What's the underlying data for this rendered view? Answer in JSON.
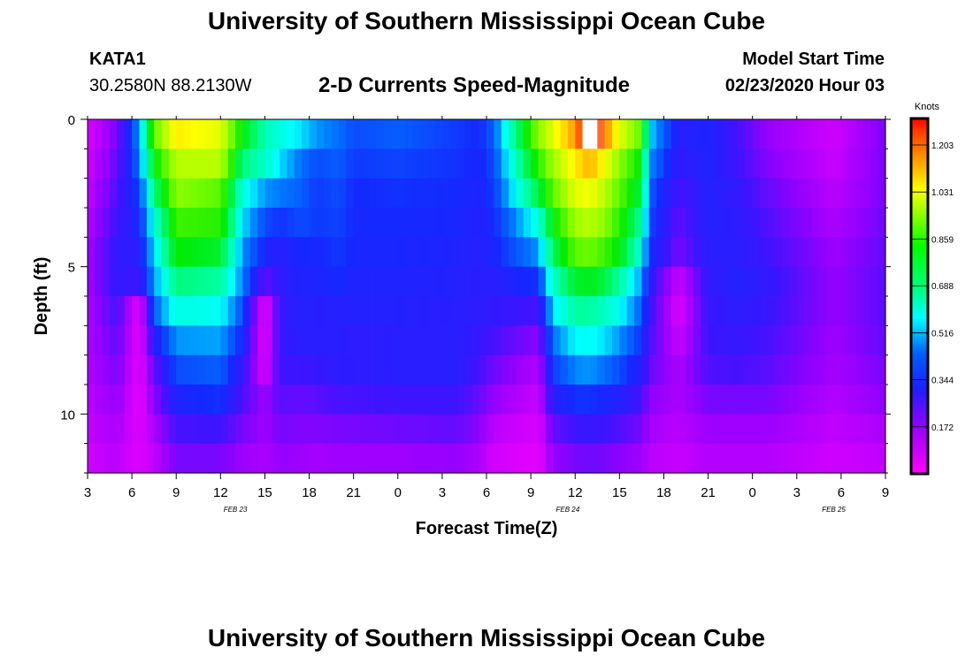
{
  "header": {
    "title": "University of Southern Mississippi Ocean Cube",
    "footer_title": "University of Southern Mississippi Ocean Cube",
    "station": "KATA1",
    "coords": "30.2580N 88.2130W",
    "chart_title": "2-D Currents Speed-Magnitude",
    "model_label": "Model Start Time",
    "model_time": "02/23/2020 Hour 03"
  },
  "chart_data": {
    "type": "heatmap",
    "title": "2-D Currents Speed-Magnitude",
    "xlabel": "Forecast Time(Z)",
    "ylabel": "Depth (ft)",
    "x_tick_labels": [
      "3",
      "6",
      "9",
      "12",
      "15",
      "18",
      "21",
      "0",
      "3",
      "6",
      "9",
      "12",
      "15",
      "18",
      "21",
      "0",
      "3",
      "6",
      "9"
    ],
    "x_range_hours": [
      0,
      54
    ],
    "date_labels": [
      {
        "text": "FEB 23",
        "hour": 10
      },
      {
        "text": "FEB 24",
        "hour": 32.5
      },
      {
        "text": "FEB 25",
        "hour": 50.5
      }
    ],
    "y_ticks": [
      0,
      5,
      10
    ],
    "y_range_ft": [
      0,
      12
    ],
    "colorbar": {
      "label": "Knots",
      "ticks": [
        "1.203",
        "1.031",
        "0.859",
        "0.688",
        "0.516",
        "0.344",
        "0.172"
      ],
      "tick_values": [
        1.203,
        1.031,
        0.859,
        0.688,
        0.516,
        0.344,
        0.172
      ],
      "range": [
        0,
        1.3
      ]
    },
    "depths_ft": [
      0.5,
      1.5,
      2.5,
      3.5,
      4.5,
      5.5,
      6.5,
      7.5,
      8.5,
      9.5,
      10.5,
      11.5
    ],
    "hour_step": 0.5,
    "anchor_hours": [
      0,
      2,
      3.5,
      4.5,
      6,
      9,
      10.5,
      12,
      13,
      14.5,
      15.5,
      17,
      18,
      21,
      25,
      26.5,
      27.5,
      30.5,
      31.5,
      33,
      34,
      35,
      36,
      37.5,
      38,
      40,
      42,
      44,
      46,
      50.5,
      54
    ],
    "anchor_profiles": [
      [
        0.07,
        0.09,
        0.11,
        0.13,
        0.15,
        0.15,
        0.14,
        0.14,
        0.13,
        0.12,
        0.11,
        0.09
      ],
      [
        0.2,
        0.22,
        0.24,
        0.26,
        0.28,
        0.28,
        0.25,
        0.22,
        0.2,
        0.17,
        0.14,
        0.12
      ],
      [
        0.45,
        0.42,
        0.37,
        0.33,
        0.3,
        0.26,
        0.05,
        0.05,
        0.05,
        0.05,
        0.06,
        0.06
      ],
      [
        0.85,
        0.75,
        0.65,
        0.55,
        0.5,
        0.45,
        0.4,
        0.3,
        0.22,
        0.18,
        0.14,
        0.11
      ],
      [
        1.05,
        0.95,
        0.9,
        0.82,
        0.76,
        0.65,
        0.55,
        0.45,
        0.38,
        0.32,
        0.25,
        0.2
      ],
      [
        1.0,
        0.95,
        0.85,
        0.8,
        0.72,
        0.62,
        0.53,
        0.46,
        0.4,
        0.35,
        0.26,
        0.2
      ],
      [
        0.75,
        0.65,
        0.55,
        0.5,
        0.45,
        0.43,
        0.38,
        0.33,
        0.28,
        0.24,
        0.2,
        0.16
      ],
      [
        0.6,
        0.58,
        0.45,
        0.38,
        0.33,
        0.22,
        0.05,
        0.05,
        0.07,
        0.16,
        0.16,
        0.14
      ],
      [
        0.55,
        0.5,
        0.43,
        0.35,
        0.3,
        0.28,
        0.27,
        0.27,
        0.26,
        0.23,
        0.2,
        0.17
      ],
      [
        0.5,
        0.42,
        0.4,
        0.38,
        0.34,
        0.32,
        0.31,
        0.3,
        0.26,
        0.22,
        0.19,
        0.16
      ],
      [
        0.45,
        0.38,
        0.36,
        0.36,
        0.33,
        0.32,
        0.3,
        0.3,
        0.27,
        0.23,
        0.19,
        0.15
      ],
      [
        0.42,
        0.4,
        0.38,
        0.37,
        0.36,
        0.34,
        0.31,
        0.3,
        0.29,
        0.25,
        0.2,
        0.16
      ],
      [
        0.38,
        0.36,
        0.34,
        0.34,
        0.33,
        0.32,
        0.31,
        0.29,
        0.29,
        0.25,
        0.2,
        0.16
      ],
      [
        0.4,
        0.37,
        0.35,
        0.34,
        0.33,
        0.32,
        0.31,
        0.3,
        0.3,
        0.26,
        0.21,
        0.16
      ],
      [
        0.36,
        0.35,
        0.34,
        0.33,
        0.32,
        0.31,
        0.3,
        0.3,
        0.3,
        0.26,
        0.22,
        0.17
      ],
      [
        0.34,
        0.33,
        0.32,
        0.31,
        0.3,
        0.3,
        0.29,
        0.27,
        0.25,
        0.22,
        0.18,
        0.14
      ],
      [
        0.4,
        0.38,
        0.36,
        0.34,
        0.33,
        0.3,
        0.28,
        0.25,
        0.21,
        0.17,
        0.12,
        0.08
      ],
      [
        0.9,
        0.8,
        0.7,
        0.55,
        0.45,
        0.35,
        0.25,
        0.18,
        0.13,
        0.1,
        0.07,
        0.05
      ],
      [
        1.0,
        0.92,
        0.85,
        0.76,
        0.68,
        0.58,
        0.5,
        0.42,
        0.36,
        0.3,
        0.22,
        0.17
      ],
      [
        1.15,
        1.05,
        1.0,
        0.92,
        0.85,
        0.72,
        0.62,
        0.52,
        0.44,
        0.35,
        0.26,
        0.2
      ],
      [
        1.3,
        1.12,
        1.02,
        0.95,
        0.87,
        0.74,
        0.62,
        0.53,
        0.45,
        0.35,
        0.27,
        0.21
      ],
      [
        1.18,
        1.02,
        0.95,
        0.9,
        0.82,
        0.7,
        0.58,
        0.5,
        0.42,
        0.33,
        0.26,
        0.2
      ],
      [
        1.0,
        0.9,
        0.85,
        0.8,
        0.75,
        0.62,
        0.53,
        0.45,
        0.38,
        0.31,
        0.24,
        0.18
      ],
      [
        0.85,
        0.75,
        0.7,
        0.62,
        0.55,
        0.45,
        0.4,
        0.35,
        0.3,
        0.25,
        0.2,
        0.16
      ],
      [
        0.5,
        0.45,
        0.4,
        0.38,
        0.35,
        0.3,
        0.27,
        0.25,
        0.22,
        0.18,
        0.15,
        0.12
      ],
      [
        0.3,
        0.28,
        0.25,
        0.22,
        0.2,
        0.1,
        0.07,
        0.1,
        0.14,
        0.14,
        0.12,
        0.1
      ],
      [
        0.32,
        0.32,
        0.31,
        0.31,
        0.3,
        0.28,
        0.27,
        0.26,
        0.24,
        0.2,
        0.16,
        0.13
      ],
      [
        0.25,
        0.26,
        0.28,
        0.29,
        0.3,
        0.31,
        0.29,
        0.27,
        0.25,
        0.2,
        0.16,
        0.13
      ],
      [
        0.17,
        0.19,
        0.22,
        0.24,
        0.26,
        0.28,
        0.27,
        0.25,
        0.23,
        0.2,
        0.16,
        0.13
      ],
      [
        0.09,
        0.1,
        0.12,
        0.14,
        0.16,
        0.17,
        0.17,
        0.16,
        0.15,
        0.13,
        0.11,
        0.09
      ],
      [
        0.2,
        0.2,
        0.2,
        0.21,
        0.22,
        0.23,
        0.23,
        0.22,
        0.2,
        0.18,
        0.14,
        0.11
      ]
    ]
  }
}
